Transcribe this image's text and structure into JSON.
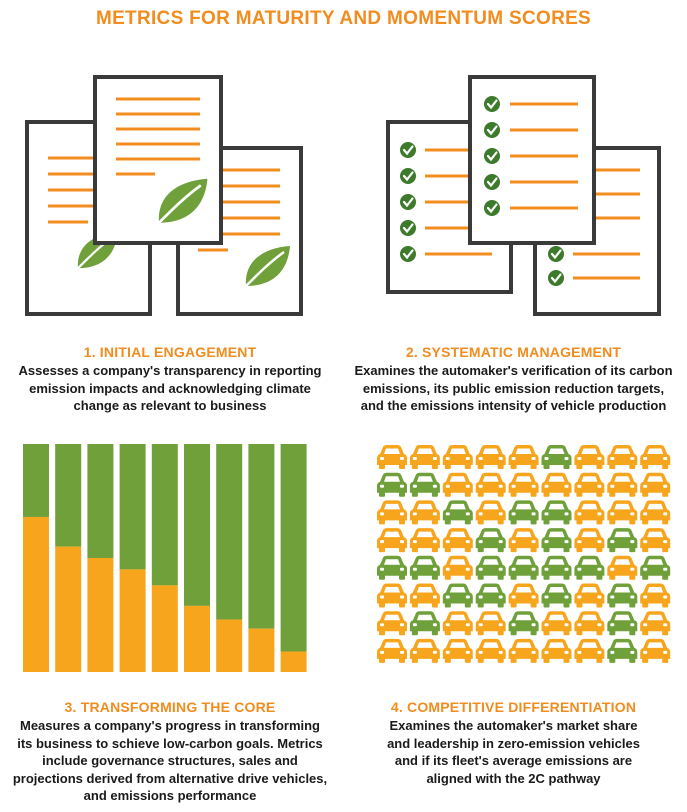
{
  "title": "METRICS FOR MATURITY AND MOMENTUM SCORES",
  "colors": {
    "orange": "#f28c1e",
    "bar_orange": "#f7a51c",
    "green": "#6fa03a",
    "dark_green": "#3d7a2c",
    "frame": "#3a3a3a"
  },
  "sections": [
    {
      "heading": "1. INITIAL ENGAGEMENT",
      "lines": [
        "Assesses a company's transparency in reporting",
        "emission impacts and acknowledging climate",
        "change as relevant to business"
      ],
      "icon": "documents-leaf-icon"
    },
    {
      "heading": "2. SYSTEMATIC MANAGEMENT",
      "lines": [
        "Examines the automaker's verification of its carbon",
        "emissions, its public emission reduction targets,",
        "and the emissions intensity of vehicle production"
      ],
      "icon": "checklist-documents-icon"
    },
    {
      "heading": "3. TRANSFORMING THE CORE",
      "lines": [
        "Measures a company's progress in transforming",
        "its business to schieve low-carbon goals. Metrics",
        "include governance structures, sales and",
        "projections derived from alternative drive vehicles,",
        "and emissions performance"
      ],
      "icon": "stacked-bars-icon"
    },
    {
      "heading": "4. COMPETITIVE DIFFERENTIATION",
      "lines": [
        "Examines the automaker's market share",
        "and leadership in zero-emission vehicles",
        "and if its fleet's average emissions are",
        "aligned with the 2C pathway"
      ],
      "icon": "car-grid-icon"
    }
  ],
  "bars_orange_fraction": [
    0.68,
    0.55,
    0.5,
    0.45,
    0.38,
    0.29,
    0.23,
    0.19,
    0.09
  ],
  "car_grid": [
    "OOOOOGOOO",
    "GGOOOOOOO",
    "OOGOGGOOO",
    "OOOGOGOGO",
    "GGOGGGGOG",
    "OOGGOGOGO",
    "OGOOGOOGO",
    "OOOOOOOGO"
  ]
}
